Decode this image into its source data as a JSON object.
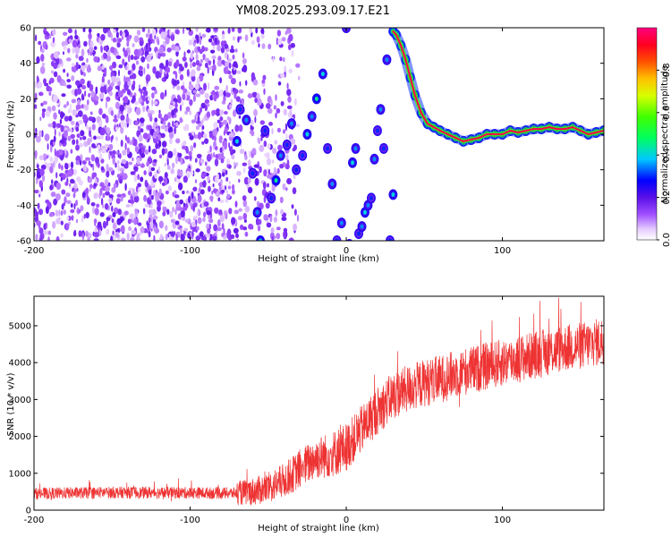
{
  "title": "YM08.2025.293.09.17.E21",
  "chart_data": [
    {
      "type": "heatmap",
      "title": "YM08.2025.293.09.17.E21",
      "xlabel": "Height of straight line (km)",
      "ylabel": "Frequency (Hz)",
      "xlim": [
        -200,
        165
      ],
      "ylim": [
        -60,
        60
      ],
      "x_ticks": [
        -200,
        -100,
        0,
        100
      ],
      "y_ticks": [
        -60,
        -40,
        -20,
        0,
        20,
        40,
        60
      ],
      "colorbar": {
        "label": "Normalized spectral amplitude",
        "range": [
          0,
          1
        ],
        "ticks": [
          0.0,
          0.2,
          0.4,
          0.6,
          0.8
        ]
      },
      "noise_region": {
        "x_from": -200,
        "x_to": -30,
        "amplitude_range": [
          0.0,
          0.15
        ]
      },
      "ridge": [
        {
          "x": -70,
          "y": -4,
          "v": 0.4
        },
        {
          "x": -68,
          "y": 14,
          "v": 0.3
        },
        {
          "x": -64,
          "y": 8,
          "v": 0.35
        },
        {
          "x": -60,
          "y": -22,
          "v": 0.3
        },
        {
          "x": -57,
          "y": -44,
          "v": 0.35
        },
        {
          "x": -55,
          "y": -60,
          "v": 0.4
        },
        {
          "x": -52,
          "y": 2,
          "v": 0.3
        },
        {
          "x": -48,
          "y": -36,
          "v": 0.3
        },
        {
          "x": -45,
          "y": -26,
          "v": 0.45
        },
        {
          "x": -42,
          "y": -12,
          "v": 0.35
        },
        {
          "x": -38,
          "y": -6,
          "v": 0.3
        },
        {
          "x": -35,
          "y": 6,
          "v": 0.35
        },
        {
          "x": -32,
          "y": -20,
          "v": 0.3
        },
        {
          "x": -28,
          "y": -12,
          "v": 0.3
        },
        {
          "x": -25,
          "y": 0,
          "v": 0.4
        },
        {
          "x": -22,
          "y": 10,
          "v": 0.35
        },
        {
          "x": -19,
          "y": 20,
          "v": 0.45
        },
        {
          "x": -15,
          "y": 34,
          "v": 0.4
        },
        {
          "x": -12,
          "y": -8,
          "v": 0.3
        },
        {
          "x": -9,
          "y": -28,
          "v": 0.35
        },
        {
          "x": -6,
          "y": -60,
          "v": 0.3
        },
        {
          "x": -3,
          "y": -50,
          "v": 0.35
        },
        {
          "x": 0,
          "y": 60,
          "v": 0.3
        },
        {
          "x": 2,
          "y": -62,
          "v": 0.3
        },
        {
          "x": 4,
          "y": -16,
          "v": 0.4
        },
        {
          "x": 6,
          "y": -8,
          "v": 0.35
        },
        {
          "x": 8,
          "y": -56,
          "v": 0.3
        },
        {
          "x": 10,
          "y": -52,
          "v": 0.35
        },
        {
          "x": 12,
          "y": -44,
          "v": 0.4
        },
        {
          "x": 14,
          "y": -40,
          "v": 0.35
        },
        {
          "x": 16,
          "y": -36,
          "v": 0.3
        },
        {
          "x": 18,
          "y": -14,
          "v": 0.35
        },
        {
          "x": 20,
          "y": 2,
          "v": 0.3
        },
        {
          "x": 22,
          "y": 14,
          "v": 0.35
        },
        {
          "x": 24,
          "y": -8,
          "v": 0.3
        },
        {
          "x": 26,
          "y": 42,
          "v": 0.35
        },
        {
          "x": 28,
          "y": -60,
          "v": 0.3
        },
        {
          "x": 30,
          "y": -34,
          "v": 0.4
        },
        {
          "x": 30,
          "y": 58,
          "v": 0.6
        },
        {
          "x": 32,
          "y": 56,
          "v": 0.7
        },
        {
          "x": 35,
          "y": 50,
          "v": 0.8
        },
        {
          "x": 38,
          "y": 42,
          "v": 0.8
        },
        {
          "x": 41,
          "y": 32,
          "v": 0.85
        },
        {
          "x": 44,
          "y": 22,
          "v": 0.9
        },
        {
          "x": 48,
          "y": 12,
          "v": 0.9
        },
        {
          "x": 52,
          "y": 6,
          "v": 0.85
        },
        {
          "x": 56,
          "y": 4,
          "v": 0.85
        },
        {
          "x": 60,
          "y": 2,
          "v": 0.9
        },
        {
          "x": 65,
          "y": 0,
          "v": 0.9
        },
        {
          "x": 70,
          "y": -2,
          "v": 0.9
        },
        {
          "x": 75,
          "y": -4,
          "v": 0.85
        },
        {
          "x": 80,
          "y": -3,
          "v": 0.9
        },
        {
          "x": 85,
          "y": -2,
          "v": 0.85
        },
        {
          "x": 90,
          "y": 0,
          "v": 0.9
        },
        {
          "x": 95,
          "y": 0,
          "v": 0.95
        },
        {
          "x": 100,
          "y": 0,
          "v": 0.9
        },
        {
          "x": 105,
          "y": 2,
          "v": 0.95
        },
        {
          "x": 110,
          "y": 1,
          "v": 0.9
        },
        {
          "x": 115,
          "y": 2,
          "v": 0.95
        },
        {
          "x": 120,
          "y": 3,
          "v": 0.95
        },
        {
          "x": 125,
          "y": 3,
          "v": 0.9
        },
        {
          "x": 130,
          "y": 4,
          "v": 0.95
        },
        {
          "x": 135,
          "y": 3,
          "v": 0.9
        },
        {
          "x": 140,
          "y": 3,
          "v": 0.95
        },
        {
          "x": 145,
          "y": 4,
          "v": 0.9
        },
        {
          "x": 150,
          "y": 2,
          "v": 0.95
        },
        {
          "x": 155,
          "y": 0,
          "v": 0.9
        },
        {
          "x": 160,
          "y": 1,
          "v": 0.9
        },
        {
          "x": 165,
          "y": 2,
          "v": 0.85
        }
      ]
    },
    {
      "type": "line",
      "xlabel": "Height of straight line (km)",
      "ylabel": "SNR (10 * v/v)",
      "xlim": [
        -200,
        165
      ],
      "ylim": [
        0,
        5800
      ],
      "x_ticks": [
        -200,
        -100,
        0,
        100
      ],
      "y_ticks": [
        0,
        1000,
        2000,
        3000,
        4000,
        5000
      ],
      "color": "#ee3333",
      "series": [
        {
          "x": [
            -200,
            -150,
            -100,
            -70,
            -60,
            -50,
            -40,
            -30,
            -20,
            -10,
            0,
            10,
            20,
            30,
            40,
            50,
            60,
            70,
            80,
            90,
            100,
            110,
            120,
            130,
            140,
            150,
            160,
            165
          ],
          "y": [
            450,
            480,
            470,
            460,
            500,
            600,
            800,
            1100,
            1400,
            1500,
            1700,
            2200,
            2700,
            3100,
            3300,
            3450,
            3550,
            3700,
            3800,
            3900,
            4000,
            4100,
            4200,
            4300,
            4400,
            4450,
            4550,
            4600
          ]
        }
      ]
    }
  ]
}
